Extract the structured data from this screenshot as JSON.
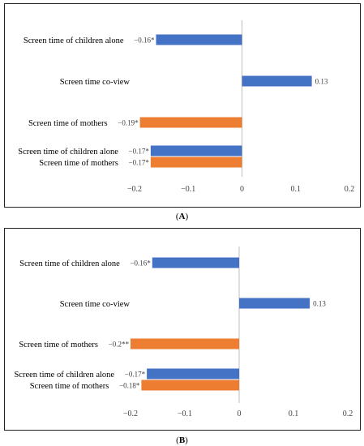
{
  "chart_data": [
    {
      "type": "bar",
      "orientation": "horizontal",
      "caption_letter": "A",
      "xlim": [
        -0.2,
        0.2
      ],
      "xticks": [
        "−0.2",
        "−0.1",
        "0",
        "0.1",
        "0.2"
      ],
      "bars": [
        {
          "label": "Screen time of children alone",
          "value": -0.16,
          "value_label": "−0.16*",
          "color": "#4472C4"
        },
        {
          "label": "Screen time co-view",
          "value": 0.13,
          "value_label": "0.13",
          "color": "#4472C4"
        },
        {
          "label": "Screen time of mothers",
          "value": -0.19,
          "value_label": "−0.19*",
          "color": "#ED7D31"
        },
        {
          "label": "Screen time of children alone",
          "value": -0.17,
          "value_label": "−0.17*",
          "color": "#4472C4"
        },
        {
          "label": "Screen time of mothers",
          "value": -0.17,
          "value_label": "−0.17*",
          "color": "#ED7D31"
        }
      ]
    },
    {
      "type": "bar",
      "orientation": "horizontal",
      "caption_letter": "B",
      "xlim": [
        -0.2,
        0.2
      ],
      "xticks": [
        "−0.2",
        "−0.1",
        "0",
        "0.1",
        "0.2"
      ],
      "bars": [
        {
          "label": "Screen time of children alone",
          "value": -0.16,
          "value_label": "−0.16*",
          "color": "#4472C4"
        },
        {
          "label": "Screen time co-view",
          "value": 0.13,
          "value_label": "0.13",
          "color": "#4472C4"
        },
        {
          "label": "Screen time of mothers",
          "value": -0.2,
          "value_label": "−0.2**",
          "color": "#ED7D31"
        },
        {
          "label": "Screen time of children alone",
          "value": -0.17,
          "value_label": "−0.17*",
          "color": "#4472C4"
        },
        {
          "label": "Screen time of mothers",
          "value": -0.18,
          "value_label": "−0.18*",
          "color": "#ED7D31"
        }
      ]
    }
  ]
}
